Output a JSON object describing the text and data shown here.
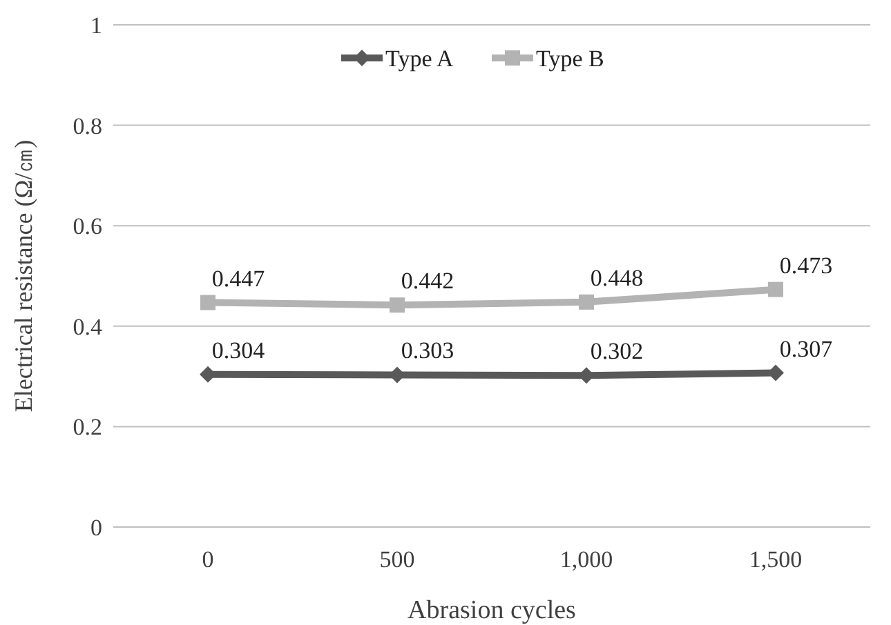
{
  "chart_data": {
    "type": "line",
    "xlabel": "Abrasion cycles",
    "ylabel": "Electrical resistance (Ω/㎝)",
    "categories": [
      "0",
      "500",
      "1,000",
      "1,500"
    ],
    "series": [
      {
        "name": "Type A",
        "color": "#595959",
        "marker": "diamond",
        "values": [
          0.304,
          0.303,
          0.302,
          0.307
        ]
      },
      {
        "name": "Type B",
        "color": "#b3b3b3",
        "marker": "square",
        "values": [
          0.447,
          0.442,
          0.448,
          0.473
        ]
      }
    ],
    "ylim": [
      0,
      1
    ],
    "yticks": [
      0,
      0.2,
      0.4,
      0.6,
      0.8,
      1
    ],
    "grid": "y",
    "legend": "top",
    "data_labels": true
  }
}
